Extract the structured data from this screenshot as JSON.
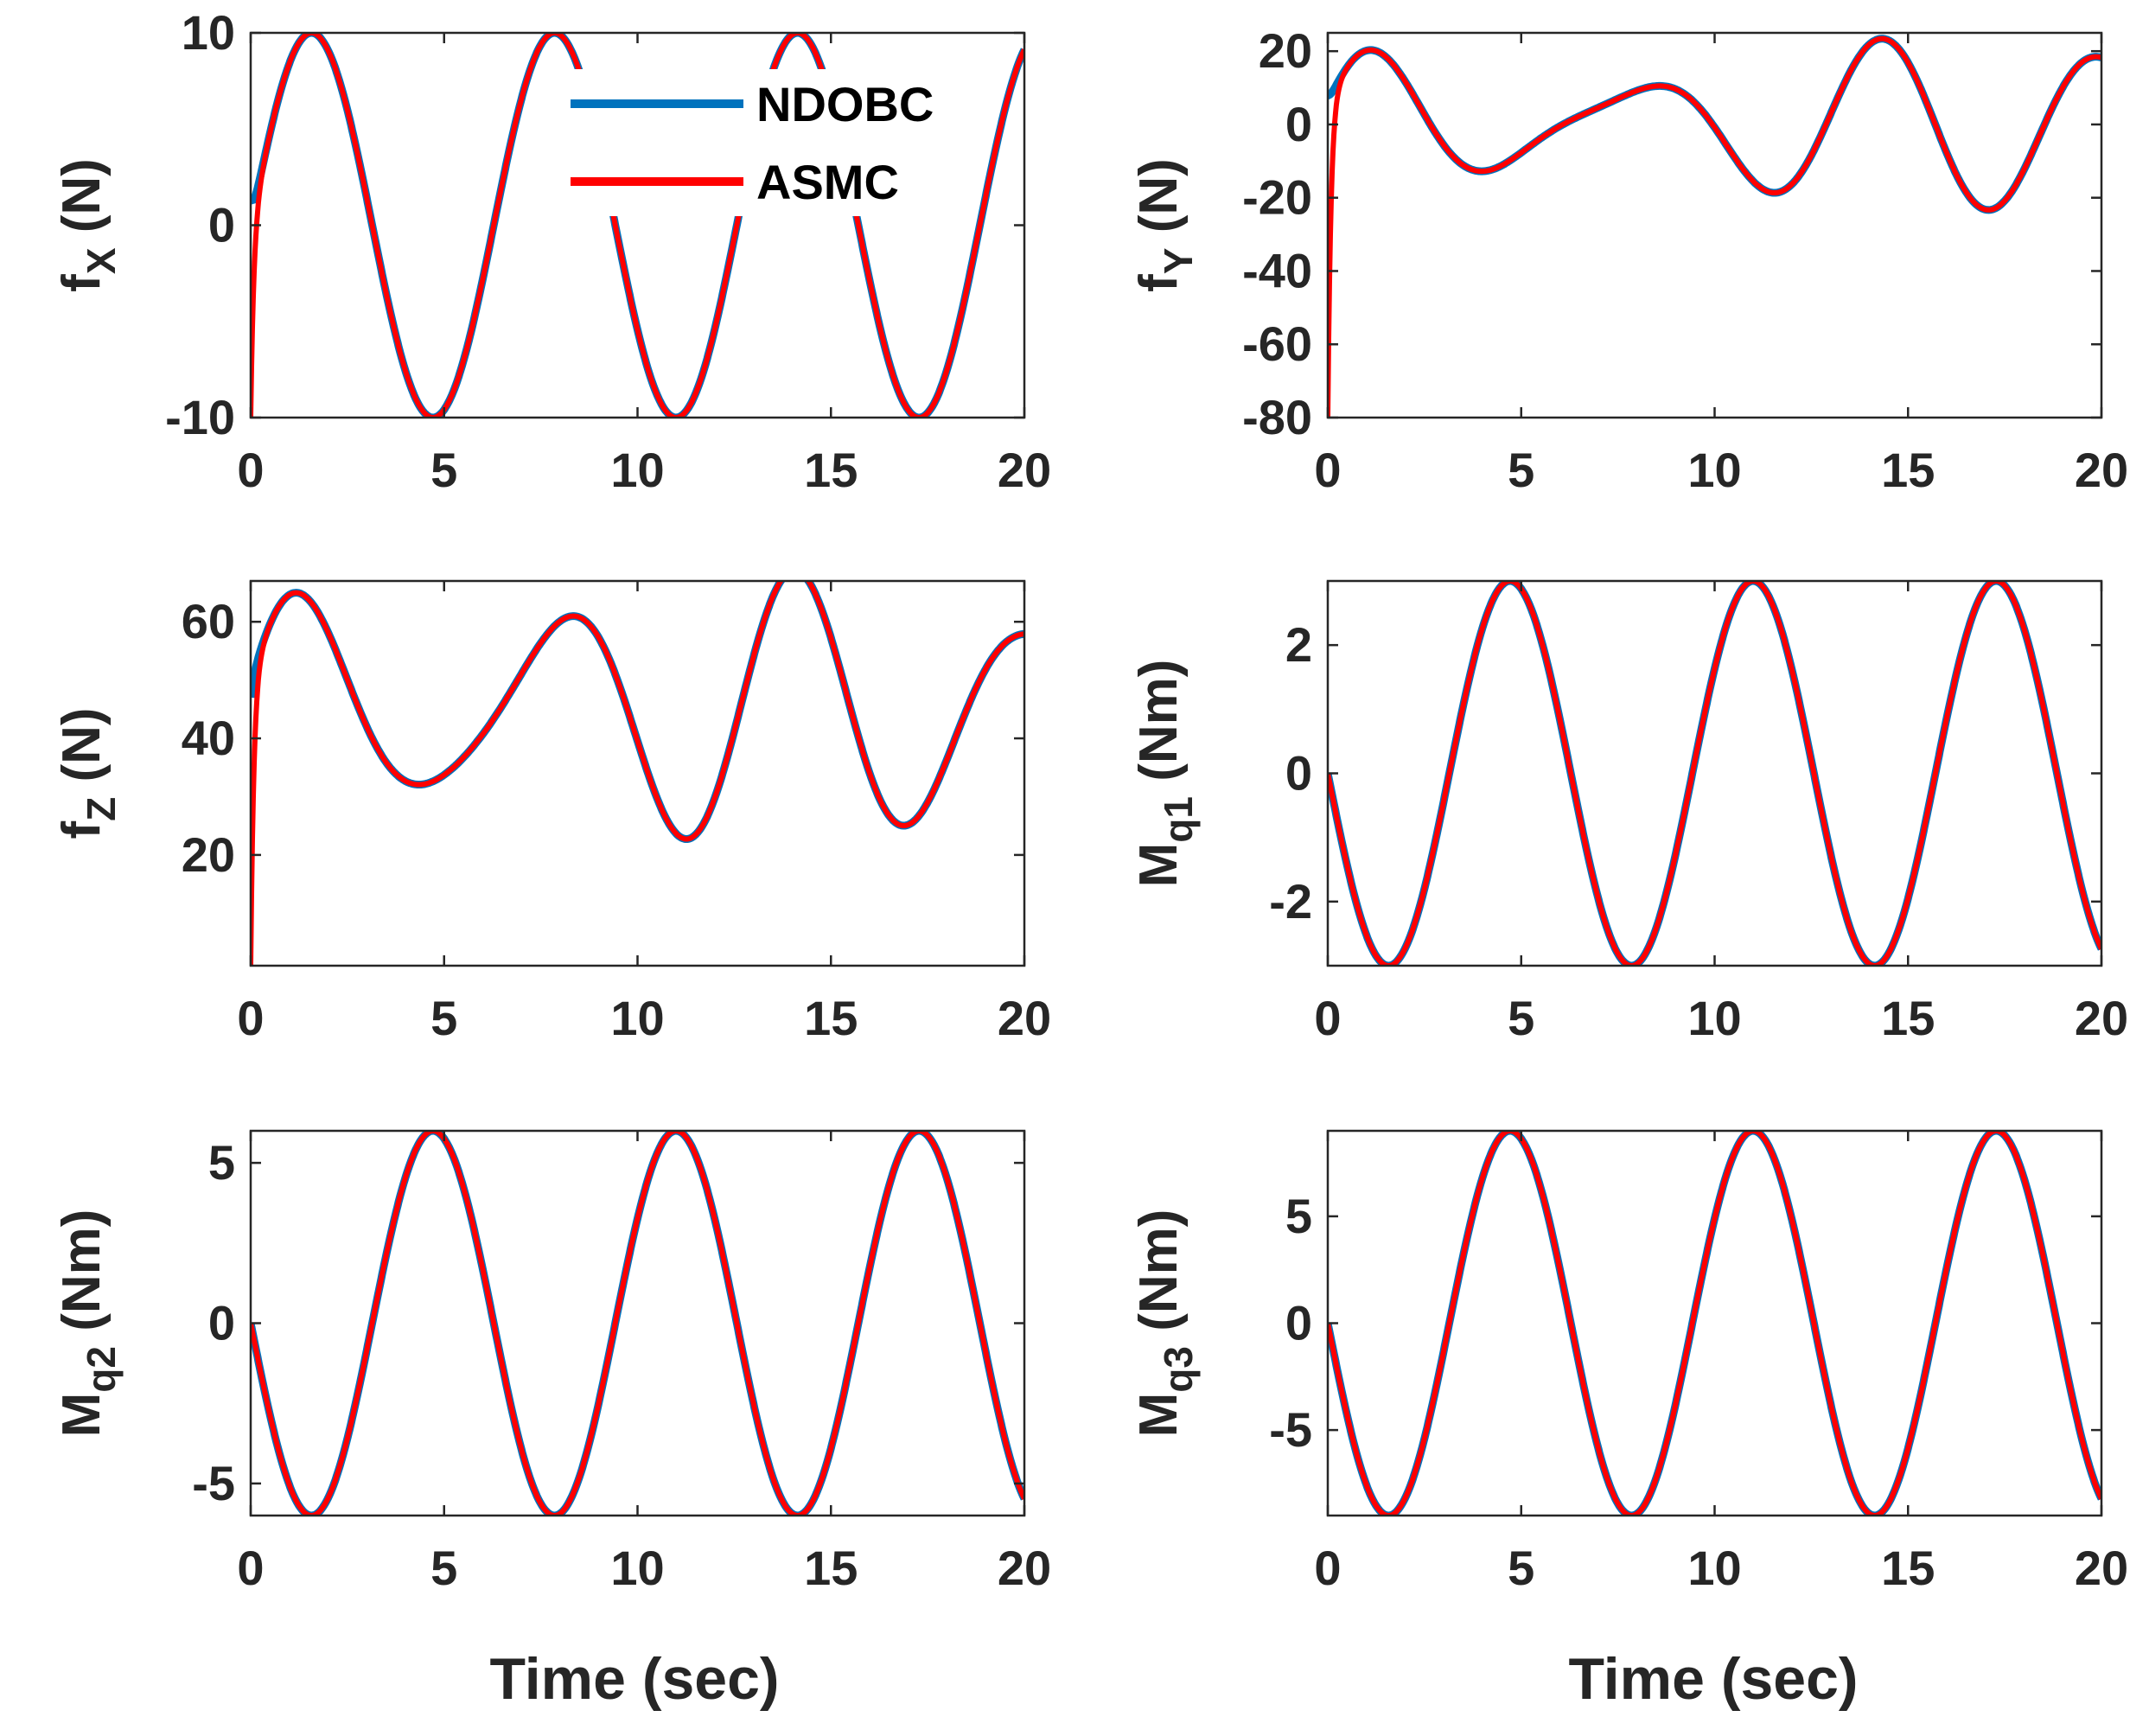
{
  "figure": {
    "xlabel_bottom": "Time (sec)",
    "colors": {
      "ndobc": "#0072BD",
      "asmc": "#FF0000",
      "axes": "#262626"
    }
  },
  "legend": {
    "entries": [
      {
        "name": "NDOBC",
        "color": "#0072BD"
      },
      {
        "name": "ASMC",
        "color": "#FF0000"
      }
    ],
    "location": "top-middle of first panel"
  },
  "chart_data": [
    {
      "id": "fx",
      "type": "line",
      "ylabel": {
        "main": "f",
        "sub": "X",
        "unit": " (N)"
      },
      "xlim": [
        0,
        20
      ],
      "ylim": [
        -10,
        10
      ],
      "xticks": [
        0,
        5,
        10,
        15,
        20
      ],
      "yticks": [
        -10,
        0,
        10
      ],
      "series": [
        {
          "name": "NDOBC",
          "offset": 0,
          "start": 1.5,
          "components": [
            {
              "a": 10,
              "w": 1.0,
              "p": 0.0
            }
          ]
        },
        {
          "name": "ASMC",
          "offset": 0,
          "start": -10,
          "components": [
            {
              "a": 10,
              "w": 1.0,
              "p": 0.0
            }
          ]
        }
      ]
    },
    {
      "id": "fy",
      "type": "line",
      "ylabel": {
        "main": "f",
        "sub": "Y",
        "unit": " (N)"
      },
      "xlim": [
        0,
        20
      ],
      "ylim": [
        -80,
        25
      ],
      "xticks": [
        0,
        5,
        10,
        15,
        20
      ],
      "yticks": [
        -80,
        -60,
        -40,
        -20,
        0,
        20
      ],
      "series": [
        {
          "name": "NDOBC",
          "offset": 0,
          "start": 8,
          "components": [
            {
              "a": 16,
              "w": 1.0,
              "p": 0.0
            },
            {
              "a": 8,
              "w": 1.35,
              "p": 0.8
            }
          ]
        },
        {
          "name": "ASMC",
          "offset": 0,
          "start": -80,
          "components": [
            {
              "a": 16,
              "w": 1.0,
              "p": 0.0
            },
            {
              "a": 8,
              "w": 1.35,
              "p": 0.8
            }
          ]
        }
      ]
    },
    {
      "id": "fz",
      "type": "line",
      "ylabel": {
        "main": "f",
        "sub": "Z",
        "unit": " (N)"
      },
      "xlim": [
        0,
        20
      ],
      "ylim": [
        1,
        67
      ],
      "xticks": [
        0,
        5,
        10,
        15,
        20
      ],
      "yticks": [
        20,
        40,
        60
      ],
      "series": [
        {
          "name": "NDOBC",
          "offset": 45,
          "start": 47,
          "components": [
            {
              "a": 18,
              "w": 1.0,
              "p": 0.0
            },
            {
              "a": 6,
              "w": 1.4,
              "p": 0.9
            }
          ]
        },
        {
          "name": "ASMC",
          "offset": 45,
          "start": 1,
          "components": [
            {
              "a": 18,
              "w": 1.0,
              "p": 0.0
            },
            {
              "a": 6,
              "w": 1.4,
              "p": 0.9
            }
          ]
        }
      ]
    },
    {
      "id": "mq1",
      "type": "line",
      "ylabel": {
        "main": "M",
        "sub": "q1",
        "unit": " (Nm)"
      },
      "xlim": [
        0,
        20
      ],
      "ylim": [
        -3,
        3
      ],
      "xticks": [
        0,
        5,
        10,
        15,
        20
      ],
      "yticks": [
        -2,
        0,
        2
      ],
      "series": [
        {
          "name": "NDOBC",
          "offset": 0,
          "start": 0,
          "components": [
            {
              "a": -3,
              "w": 1.0,
              "p": 0.0
            }
          ]
        },
        {
          "name": "ASMC",
          "offset": 0,
          "start": 0,
          "components": [
            {
              "a": -3,
              "w": 1.0,
              "p": 0.0
            }
          ]
        }
      ]
    },
    {
      "id": "mq2",
      "type": "line",
      "ylabel": {
        "main": "M",
        "sub": "q2",
        "unit": " (Nm)"
      },
      "xlim": [
        0,
        20
      ],
      "ylim": [
        -6,
        6
      ],
      "xticks": [
        0,
        5,
        10,
        15,
        20
      ],
      "yticks": [
        -5,
        0,
        5
      ],
      "series": [
        {
          "name": "NDOBC",
          "offset": 0,
          "start": 0,
          "components": [
            {
              "a": -6,
              "w": 1.0,
              "p": 0.0
            }
          ]
        },
        {
          "name": "ASMC",
          "offset": 0,
          "start": 0,
          "components": [
            {
              "a": -6,
              "w": 1.0,
              "p": 0.0
            }
          ]
        }
      ]
    },
    {
      "id": "mq3",
      "type": "line",
      "ylabel": {
        "main": "M",
        "sub": "q3",
        "unit": " (Nm)"
      },
      "xlim": [
        0,
        20
      ],
      "ylim": [
        -9,
        9
      ],
      "xticks": [
        0,
        5,
        10,
        15,
        20
      ],
      "yticks": [
        -5,
        0,
        5
      ],
      "series": [
        {
          "name": "NDOBC",
          "offset": 0,
          "start": 0,
          "components": [
            {
              "a": -9,
              "w": 1.0,
              "p": 0.0
            }
          ]
        },
        {
          "name": "ASMC",
          "offset": 0,
          "start": 0,
          "components": [
            {
              "a": -9,
              "w": 1.0,
              "p": 0.0
            }
          ]
        }
      ]
    }
  ]
}
